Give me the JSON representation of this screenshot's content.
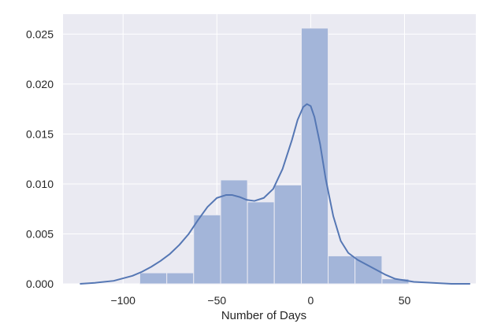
{
  "chart_data": {
    "type": "bar",
    "title": "",
    "xlabel": "Number of Days",
    "ylabel": "",
    "xlim": [
      -132,
      88
    ],
    "ylim": [
      0,
      0.027
    ],
    "grid": true,
    "background_color": "#eaeaf2",
    "grid_color": "#ffffff",
    "bar_color": "#a3b5d9",
    "line_color": "#5577b4",
    "x_ticks": [
      {
        "value": -100,
        "label": "−100"
      },
      {
        "value": -50,
        "label": "−50"
      },
      {
        "value": 0,
        "label": "0"
      },
      {
        "value": 50,
        "label": "50"
      }
    ],
    "y_ticks": [
      {
        "value": 0.0,
        "label": "0.000"
      },
      {
        "value": 0.005,
        "label": "0.005"
      },
      {
        "value": 0.01,
        "label": "0.010"
      },
      {
        "value": 0.015,
        "label": "0.015"
      },
      {
        "value": 0.02,
        "label": "0.020"
      },
      {
        "value": 0.025,
        "label": "0.025"
      }
    ],
    "histogram": {
      "bin_edges": [
        -91.1,
        -76.7,
        -62.4,
        -48.0,
        -33.7,
        -19.4,
        -5.0,
        9.3,
        23.6,
        38.0,
        52.3
      ],
      "values": [
        0.0011,
        0.0011,
        0.0069,
        0.0104,
        0.0082,
        0.0099,
        0.0256,
        0.0028,
        0.0028,
        0.0005
      ]
    },
    "kde": {
      "x": [
        -123,
        -115,
        -105,
        -95,
        -90,
        -85,
        -80,
        -75,
        -70,
        -65,
        -60,
        -55,
        -50,
        -45,
        -42,
        -38,
        -34,
        -30,
        -25,
        -20,
        -15,
        -10,
        -7,
        -4,
        -2,
        0,
        2,
        5,
        8,
        12,
        16,
        20,
        25,
        30,
        35,
        40,
        45,
        55,
        65,
        75,
        85
      ],
      "y": [
        0.0,
        0.0001,
        0.0003,
        0.0008,
        0.0012,
        0.0017,
        0.0023,
        0.003,
        0.0039,
        0.005,
        0.0064,
        0.0077,
        0.0086,
        0.0089,
        0.0089,
        0.0087,
        0.0084,
        0.0083,
        0.0086,
        0.0095,
        0.0115,
        0.0144,
        0.0164,
        0.0177,
        0.018,
        0.0178,
        0.0167,
        0.014,
        0.0105,
        0.0068,
        0.0043,
        0.0031,
        0.0024,
        0.0019,
        0.0014,
        0.0009,
        0.0005,
        0.0002,
        0.0001,
        0.0,
        0.0
      ]
    }
  }
}
